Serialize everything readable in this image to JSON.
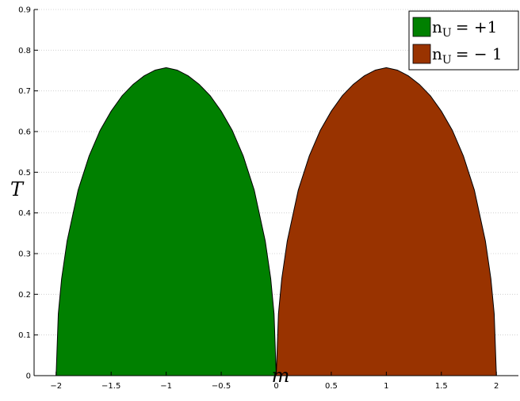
{
  "chart_data": {
    "type": "area",
    "xlabel": "m",
    "ylabel": "T",
    "xlim": [
      -2.2,
      2.2
    ],
    "ylim": [
      0,
      0.9
    ],
    "x_ticks": [
      -2,
      -1.5,
      -1,
      -0.5,
      0,
      0.5,
      1,
      1.5,
      2
    ],
    "x_tick_labels": [
      "−2",
      "−1.5",
      "−1",
      "−0.5",
      "0",
      "0.5",
      "1",
      "1.5",
      "2"
    ],
    "y_ticks": [
      0,
      0.1,
      0.2,
      0.3,
      0.4,
      0.5,
      0.6,
      0.7,
      0.8,
      0.9
    ],
    "y_tick_labels": [
      "0",
      "0.1",
      "0.2",
      "0.3",
      "0.4",
      "0.5",
      "0.6",
      "0.7",
      "0.8",
      "0.9"
    ],
    "grid": true,
    "legend_position": "top-right",
    "series": [
      {
        "legend_label": "n",
        "legend_subscript": "U",
        "legend_value": "= +1",
        "color": "#008000",
        "x": [
          -2.0,
          -1.98,
          -1.95,
          -1.9,
          -1.8,
          -1.7,
          -1.6,
          -1.5,
          -1.4,
          -1.3,
          -1.2,
          -1.1,
          -1.0,
          -0.9,
          -0.8,
          -0.7,
          -0.6,
          -0.5,
          -0.4,
          -0.3,
          -0.2,
          -0.1,
          -0.05,
          -0.02,
          0.0
        ],
        "y": [
          0.0,
          0.152,
          0.238,
          0.331,
          0.456,
          0.54,
          0.603,
          0.65,
          0.688,
          0.716,
          0.737,
          0.751,
          0.757,
          0.751,
          0.737,
          0.716,
          0.688,
          0.65,
          0.603,
          0.54,
          0.456,
          0.331,
          0.238,
          0.152,
          0.0
        ]
      },
      {
        "legend_label": "n",
        "legend_subscript": "U",
        "legend_value": "= − 1",
        "color": "#993300",
        "x": [
          0.0,
          0.02,
          0.05,
          0.1,
          0.2,
          0.3,
          0.4,
          0.5,
          0.6,
          0.7,
          0.8,
          0.9,
          1.0,
          1.1,
          1.2,
          1.3,
          1.4,
          1.5,
          1.6,
          1.7,
          1.8,
          1.9,
          1.95,
          1.98,
          2.0
        ],
        "y": [
          0.0,
          0.152,
          0.238,
          0.331,
          0.456,
          0.54,
          0.603,
          0.65,
          0.688,
          0.716,
          0.737,
          0.751,
          0.757,
          0.751,
          0.737,
          0.716,
          0.688,
          0.65,
          0.603,
          0.54,
          0.456,
          0.331,
          0.238,
          0.152,
          0.0
        ]
      }
    ]
  }
}
